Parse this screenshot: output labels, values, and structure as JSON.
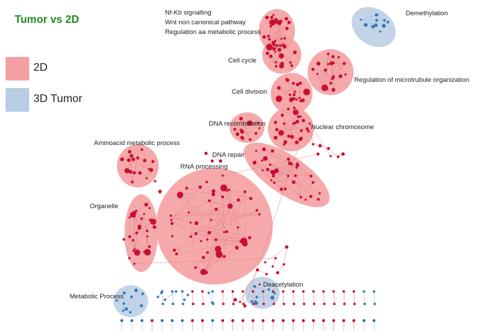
{
  "title": "Tumor vs 2D",
  "legend": [
    {
      "label": "2D",
      "color": "#f4a0a2"
    },
    {
      "label": "3D Tumor",
      "color": "#b8cce4"
    }
  ],
  "colors": {
    "cluster_2d": "#f4a0a2",
    "cluster_3d": "#b8cce4",
    "node_2d": "#c8102e",
    "node_3d": "#2e75b6",
    "edge_2d": "#e5848a",
    "edge_3d": "#9dc3e6"
  },
  "labels": {
    "nfkb": "Nf-Kb signalling",
    "wnt": "Wnt non canonical pathway",
    "regulation_aa": "Regulation aa metabolic process",
    "cell_cycle": "Cell  cycle",
    "cell_division": "Cell division",
    "dna_recombination": "DNA recombination",
    "nuclear_chromosome": "Nuclear chromosome",
    "dna_repair": "DNA repair",
    "rna_processing": "RNA processing",
    "aminoacid": "Aminoacid metabolic process",
    "organelle": "Organelle",
    "metabolic_process": "Metabolic Process",
    "deacetylation": "Deacetylation",
    "demethylation": "Demethylation",
    "microtubule": "Regulation of microtrubule organization"
  }
}
